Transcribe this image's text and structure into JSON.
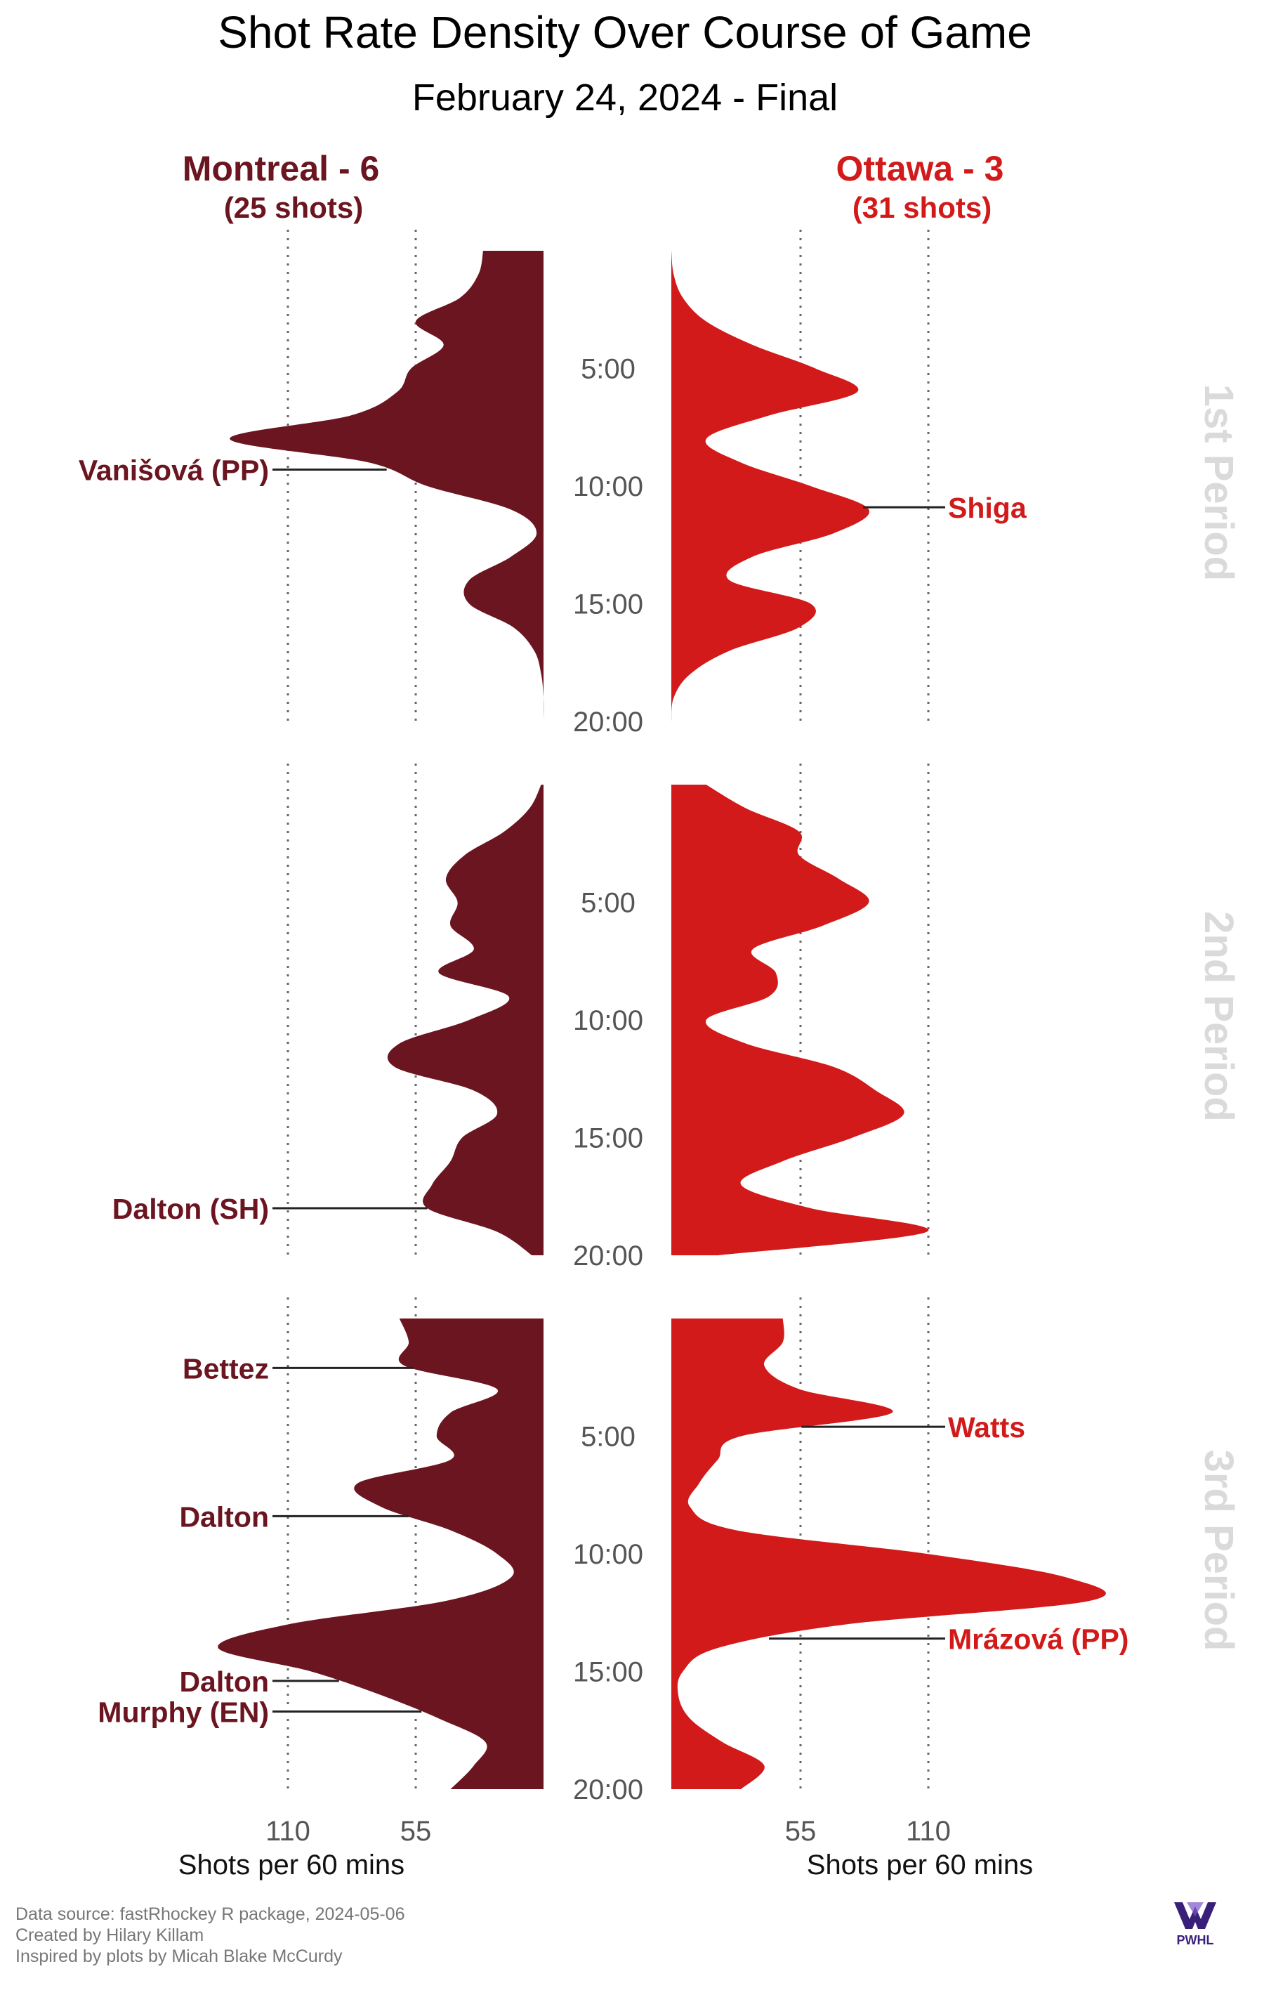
{
  "title": "Shot Rate Density Over Course of Game",
  "subtitle": "February 24, 2024 - Final",
  "teams": {
    "left": {
      "name_score": "Montreal - 6",
      "shots_label": "(25 shots)",
      "color": "#6b1520"
    },
    "right": {
      "name_score": "Ottawa - 3",
      "shots_label": "(31 shots)",
      "color": "#d21a1a"
    }
  },
  "axis": {
    "left_ticks": [
      "110",
      "55"
    ],
    "right_ticks": [
      "55",
      "110"
    ],
    "left_title": "Shots per 60 mins",
    "right_title": "Shots per 60 mins",
    "period_time_ticks": [
      "5:00",
      "10:00",
      "15:00",
      "20:00"
    ]
  },
  "periods": [
    "1st Period",
    "2nd Period",
    "3rd Period"
  ],
  "caption": [
    "Data source: fastRhockey R package, 2024-05-06",
    "Created by Hilary Killam",
    "Inspired by plots by Micah Blake McCurdy"
  ],
  "logo_text": "PWHL",
  "chart_data": {
    "type": "area",
    "orientation": "vertical density, mirrored by team",
    "x_unit": "minutes into period",
    "value_unit": "Shots per 60 mins",
    "xlim": [
      0,
      20
    ],
    "value_max": 110,
    "grid": "dotted lines at 55 and 110",
    "series": [
      {
        "name": "Montreal - 6",
        "side": "left",
        "color": "#6b1520",
        "periods": [
          {
            "period": "1st Period",
            "minutes": [
              0,
              1,
              2,
              3,
              4,
              5,
              6,
              7,
              8,
              9,
              10,
              11,
              12,
              13,
              14,
              15,
              16,
              17,
              18,
              19,
              20
            ],
            "rate": [
              26,
              28,
              36,
              55,
              43,
              57,
              63,
              83,
              135,
              75,
              50,
              14,
              3,
              14,
              32,
              32,
              13,
              4,
              1,
              0,
              0
            ]
          },
          {
            "period": "2nd Period",
            "minutes": [
              0,
              1,
              2,
              3,
              4,
              5,
              6,
              7,
              8,
              9,
              10,
              11,
              12,
              13,
              14,
              15,
              16,
              17,
              18,
              19,
              20
            ],
            "rate": [
              1,
              6,
              17,
              34,
              42,
              37,
              40,
              30,
              45,
              15,
              32,
              62,
              64,
              30,
              20,
              35,
              40,
              48,
              50,
              20,
              5
            ]
          },
          {
            "period": "3rd Period",
            "minutes": [
              0,
              1,
              2,
              3,
              4,
              5,
              6,
              7,
              8,
              9,
              10,
              11,
              12,
              13,
              14,
              15,
              16,
              17,
              18,
              19,
              20
            ],
            "rate": [
              62,
              58,
              60,
              20,
              40,
              46,
              40,
              80,
              70,
              40,
              20,
              14,
              42,
              110,
              140,
              100,
              70,
              45,
              25,
              30,
              40
            ]
          }
        ],
        "goals": [
          {
            "label": "Vanišová (PP)",
            "period": "1st Period",
            "time": 9.3
          },
          {
            "label": "Dalton (SH)",
            "period": "2nd Period",
            "time": 18.0
          },
          {
            "label": "Bettez",
            "period": "3rd Period",
            "time": 2.1
          },
          {
            "label": "Dalton",
            "period": "3rd Period",
            "time": 8.4
          },
          {
            "label": "Dalton",
            "period": "3rd Period",
            "time": 15.4
          },
          {
            "label": "Murphy (EN)",
            "period": "3rd Period",
            "time": 16.7
          }
        ]
      },
      {
        "name": "Ottawa - 3",
        "side": "right",
        "color": "#d21a1a",
        "periods": [
          {
            "period": "1st Period",
            "minutes": [
              0,
              1,
              2,
              3,
              4,
              5,
              6,
              7,
              8,
              9,
              10,
              11,
              12,
              13,
              14,
              15,
              16,
              17,
              18,
              19,
              20
            ],
            "rate": [
              0,
              1,
              5,
              15,
              35,
              62,
              80,
              42,
              15,
              30,
              60,
              85,
              70,
              35,
              25,
              60,
              55,
              25,
              8,
              1,
              0
            ]
          },
          {
            "period": "2nd Period",
            "minutes": [
              0,
              1,
              2,
              3,
              4,
              5,
              6,
              7,
              8,
              9,
              10,
              11,
              12,
              13,
              14,
              15,
              16,
              17,
              18,
              19,
              20
            ],
            "rate": [
              15,
              32,
              55,
              55,
              72,
              85,
              65,
              35,
              45,
              42,
              15,
              32,
              70,
              88,
              100,
              78,
              48,
              30,
              60,
              110,
              20
            ]
          },
          {
            "period": "3rd Period",
            "minutes": [
              0,
              1,
              2,
              3,
              4,
              5,
              6,
              7,
              8,
              9,
              10,
              11,
              12,
              13,
              14,
              15,
              16,
              17,
              18,
              19,
              20
            ],
            "rate": [
              48,
              48,
              40,
              55,
              95,
              30,
              20,
              12,
              8,
              28,
              110,
              170,
              180,
              75,
              20,
              5,
              3,
              8,
              22,
              40,
              30
            ]
          }
        ],
        "goals": [
          {
            "label": "Shiga",
            "period": "1st Period",
            "time": 10.9
          },
          {
            "label": "Watts",
            "period": "3rd Period",
            "time": 4.6
          },
          {
            "label": "Mrázová (PP)",
            "period": "3rd Period",
            "time": 13.6
          }
        ]
      }
    ]
  }
}
